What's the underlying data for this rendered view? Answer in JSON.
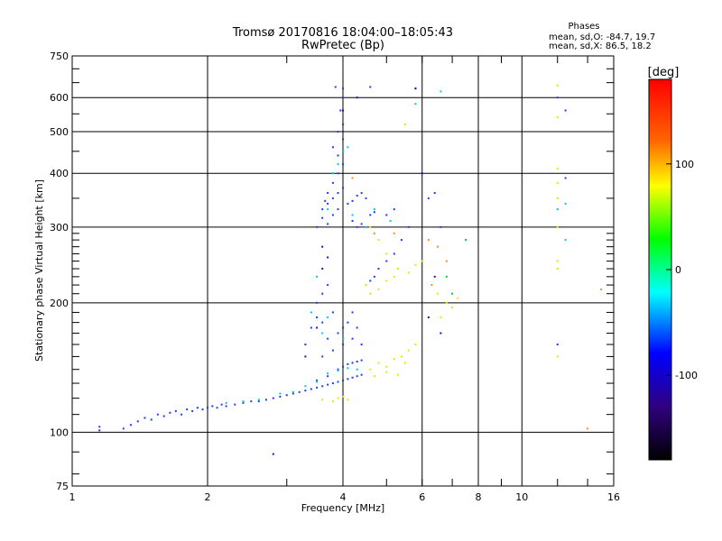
{
  "chart_data": {
    "type": "scatter",
    "title": "Tromsø 20170816 18:04:00–18:05:43",
    "subtitle": "RwPretec (Bp)",
    "xlabel": "Frequency [MHz]",
    "ylabel": "Stationary phase Virtual Height [km]",
    "x_scale": "log",
    "y_scale": "log",
    "xlim": [
      1,
      16
    ],
    "ylim": [
      75,
      750
    ],
    "x_ticks": [
      1,
      2,
      4,
      6,
      8,
      10,
      16
    ],
    "x_tick_labels": [
      "1",
      "2",
      "4",
      "6",
      "8",
      "10",
      "16"
    ],
    "y_ticks": [
      75,
      100,
      200,
      300,
      400,
      500,
      600,
      750
    ],
    "y_tick_labels": [
      "75",
      "100",
      "200",
      "300",
      "400",
      "500",
      "600",
      "750"
    ],
    "grid": true,
    "stats": {
      "heading": "Phases",
      "line_o": "mean, sd,O:  -84.7, 19.7",
      "line_x": "mean, sd,X:   86.5, 18.2"
    },
    "colorbar": {
      "label": "[deg]",
      "range": [
        -180,
        180
      ],
      "ticks": [
        100,
        0,
        -100
      ],
      "tick_labels": [
        "100",
        "0",
        "-100"
      ]
    },
    "series": [
      {
        "points": [
          [
            1.15,
            101
          ],
          [
            1.15,
            103
          ],
          [
            1.3,
            102
          ],
          [
            1.35,
            104
          ],
          [
            1.4,
            106
          ],
          [
            1.45,
            108
          ],
          [
            1.5,
            107
          ],
          [
            1.55,
            110
          ],
          [
            1.6,
            109
          ],
          [
            1.65,
            111
          ],
          [
            1.7,
            112
          ],
          [
            1.75,
            110
          ],
          [
            1.8,
            113
          ],
          [
            1.85,
            112
          ],
          [
            1.9,
            114
          ],
          [
            1.95,
            113
          ],
          [
            2.0,
            114
          ],
          [
            2.05,
            115
          ],
          [
            2.1,
            114
          ],
          [
            2.15,
            116
          ],
          [
            2.2,
            115
          ],
          [
            2.3,
            116
          ],
          [
            2.4,
            117
          ],
          [
            2.5,
            118
          ],
          [
            2.6,
            118
          ],
          [
            2.7,
            119
          ],
          [
            2.8,
            120
          ],
          [
            2.9,
            121
          ],
          [
            3.0,
            122
          ],
          [
            3.1,
            123
          ],
          [
            3.2,
            124
          ],
          [
            3.3,
            125
          ],
          [
            3.4,
            126
          ],
          [
            3.5,
            127
          ],
          [
            3.6,
            128
          ],
          [
            3.7,
            129
          ],
          [
            3.8,
            130
          ],
          [
            3.9,
            131
          ],
          [
            4.0,
            132
          ],
          [
            4.1,
            133
          ],
          [
            4.2,
            134
          ],
          [
            4.3,
            135
          ],
          [
            4.4,
            136
          ],
          [
            3.5,
            132
          ],
          [
            3.7,
            135
          ],
          [
            3.9,
            140
          ],
          [
            4.0,
            142
          ],
          [
            4.1,
            144
          ],
          [
            4.2,
            145
          ],
          [
            4.3,
            146
          ],
          [
            4.4,
            147
          ],
          [
            3.6,
            150
          ],
          [
            3.8,
            155
          ],
          [
            4.0,
            160
          ],
          [
            3.9,
            170
          ],
          [
            4.0,
            175
          ],
          [
            3.6,
            180
          ],
          [
            3.7,
            165
          ],
          [
            3.5,
            185
          ],
          [
            3.8,
            190
          ],
          [
            4.1,
            180
          ],
          [
            4.2,
            165
          ],
          [
            3.3,
            160
          ],
          [
            3.4,
            175
          ],
          [
            3.5,
            200
          ],
          [
            3.6,
            210
          ],
          [
            3.7,
            220
          ],
          [
            4.2,
            190
          ],
          [
            4.3,
            175
          ],
          [
            4.4,
            160
          ],
          [
            3.8,
            320
          ],
          [
            3.9,
            330
          ],
          [
            3.7,
            340
          ],
          [
            3.8,
            350
          ],
          [
            3.9,
            360
          ],
          [
            4.0,
            370
          ],
          [
            3.8,
            380
          ],
          [
            3.9,
            400
          ],
          [
            4.0,
            420
          ],
          [
            3.9,
            440
          ],
          [
            3.8,
            460
          ],
          [
            4.0,
            480
          ],
          [
            3.9,
            500
          ],
          [
            4.0,
            520
          ],
          [
            3.95,
            560
          ],
          [
            4.0,
            600
          ],
          [
            4.0,
            630
          ],
          [
            3.85,
            635
          ],
          [
            3.6,
            330
          ],
          [
            3.65,
            345
          ],
          [
            3.7,
            360
          ],
          [
            4.1,
            340
          ],
          [
            4.2,
            345
          ],
          [
            4.3,
            355
          ],
          [
            4.4,
            360
          ],
          [
            4.5,
            350
          ],
          [
            4.6,
            320
          ],
          [
            4.7,
            325
          ],
          [
            4.2,
            310
          ],
          [
            4.3,
            300
          ],
          [
            4.4,
            305
          ],
          [
            3.5,
            300
          ],
          [
            3.6,
            315
          ],
          [
            3.7,
            305
          ],
          [
            4.6,
            635
          ],
          [
            4.7,
            230
          ],
          [
            4.8,
            240
          ],
          [
            4.6,
            225
          ],
          [
            4.5,
            220
          ],
          [
            5.0,
            250
          ],
          [
            5.2,
            260
          ],
          [
            5.4,
            280
          ],
          [
            5.6,
            300
          ],
          [
            6.2,
            350
          ],
          [
            6.4,
            360
          ],
          [
            6.6,
            300
          ],
          [
            5.0,
            320
          ],
          [
            5.2,
            330
          ],
          [
            5.8,
            630
          ],
          [
            12.0,
            600
          ],
          [
            12.5,
            560
          ],
          [
            12.5,
            390
          ],
          [
            12.0,
            160
          ]
        ],
        "color": "#1e3cf0"
      },
      {
        "points": [
          [
            2.2,
            117
          ],
          [
            2.4,
            118
          ],
          [
            2.6,
            119
          ],
          [
            2.9,
            123
          ],
          [
            3.1,
            124
          ],
          [
            3.3,
            128
          ],
          [
            3.5,
            131
          ],
          [
            3.7,
            137
          ],
          [
            3.9,
            139
          ],
          [
            4.1,
            141
          ],
          [
            4.3,
            140
          ],
          [
            4.0,
            165
          ],
          [
            3.6,
            170
          ],
          [
            3.7,
            185
          ],
          [
            3.4,
            190
          ],
          [
            3.5,
            230
          ],
          [
            3.8,
            400
          ],
          [
            3.9,
            420
          ],
          [
            4.0,
            450
          ],
          [
            4.1,
            460
          ],
          [
            3.7,
            330
          ],
          [
            4.2,
            320
          ],
          [
            4.5,
            300
          ],
          [
            4.7,
            330
          ],
          [
            5.1,
            310
          ],
          [
            5.8,
            580
          ],
          [
            6.6,
            620
          ],
          [
            12.5,
            340
          ],
          [
            12.0,
            330
          ],
          [
            12.5,
            280
          ],
          [
            4.0,
            560
          ]
        ],
        "color": "#00c8e6"
      },
      {
        "points": [
          [
            3.6,
            119
          ],
          [
            3.8,
            118
          ],
          [
            3.9,
            120
          ],
          [
            4.0,
            121
          ],
          [
            4.1,
            119
          ],
          [
            4.6,
            140
          ],
          [
            4.8,
            145
          ],
          [
            5.0,
            142
          ],
          [
            5.2,
            148
          ],
          [
            5.4,
            150
          ],
          [
            5.6,
            155
          ],
          [
            5.8,
            160
          ],
          [
            4.7,
            135
          ],
          [
            5.0,
            138
          ],
          [
            5.3,
            136
          ],
          [
            5.5,
            145
          ],
          [
            4.6,
            300
          ],
          [
            4.8,
            280
          ],
          [
            5.0,
            260
          ],
          [
            5.3,
            240
          ],
          [
            5.6,
            235
          ],
          [
            5.8,
            245
          ],
          [
            6.0,
            250
          ],
          [
            6.5,
            210
          ],
          [
            6.8,
            200
          ],
          [
            7.0,
            195
          ],
          [
            7.2,
            205
          ],
          [
            6.6,
            185
          ],
          [
            4.8,
            215
          ],
          [
            5.0,
            225
          ],
          [
            5.2,
            230
          ],
          [
            4.5,
            220
          ],
          [
            4.6,
            210
          ],
          [
            5.5,
            520
          ],
          [
            12.0,
            410
          ],
          [
            12.0,
            380
          ],
          [
            12.0,
            350
          ],
          [
            12.0,
            300
          ],
          [
            12.0,
            250
          ],
          [
            12.0,
            240
          ],
          [
            12.0,
            150
          ],
          [
            12.0,
            540
          ],
          [
            12.0,
            640
          ]
        ],
        "color": "#e6e600"
      },
      {
        "points": [
          [
            4.2,
            390
          ],
          [
            4.7,
            290
          ],
          [
            5.2,
            290
          ],
          [
            6.2,
            280
          ],
          [
            6.5,
            270
          ],
          [
            6.8,
            250
          ],
          [
            6.3,
            220
          ],
          [
            14.0,
            102
          ],
          [
            15.0,
            215
          ]
        ],
        "color": "#ff8c1e"
      },
      {
        "points": [
          [
            3.3,
            150
          ],
          [
            3.5,
            175
          ],
          [
            3.6,
            240
          ],
          [
            3.7,
            255
          ],
          [
            3.6,
            270
          ],
          [
            4.0,
            560
          ],
          [
            4.3,
            600
          ],
          [
            5.8,
            630
          ],
          [
            6.0,
            400
          ],
          [
            6.4,
            230
          ],
          [
            6.6,
            170
          ],
          [
            6.2,
            185
          ],
          [
            2.8,
            89
          ]
        ],
        "color": "#3a00b4"
      },
      {
        "points": [
          [
            7.5,
            280
          ],
          [
            7.0,
            210
          ],
          [
            6.8,
            230
          ]
        ],
        "color": "#00c83c"
      }
    ]
  }
}
